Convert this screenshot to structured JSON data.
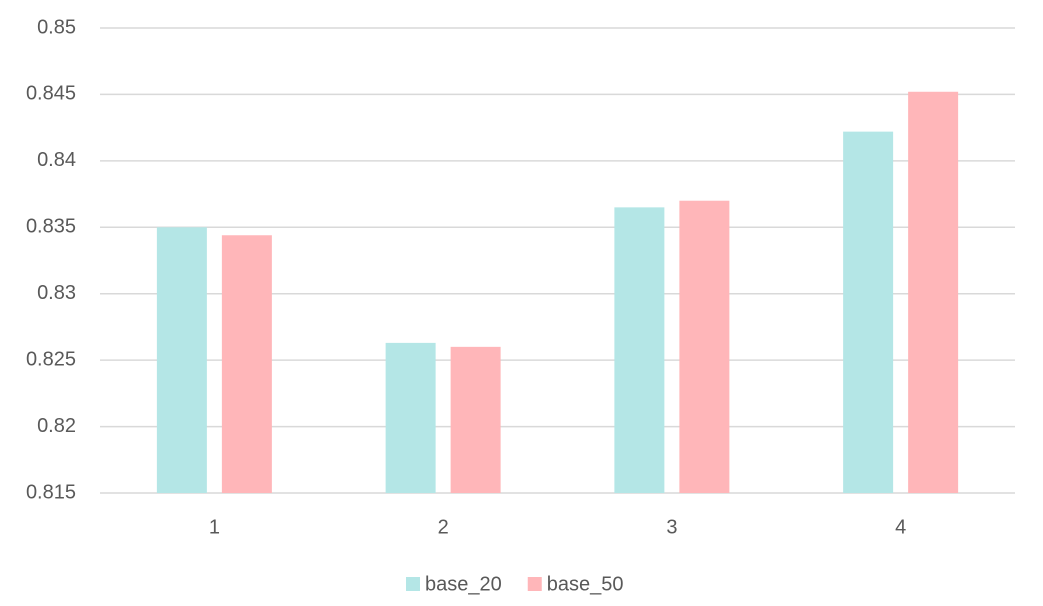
{
  "chart_data": {
    "type": "bar",
    "categories": [
      "1",
      "2",
      "3",
      "4"
    ],
    "series": [
      {
        "name": "base_20",
        "color": "#b4e6e6",
        "values": [
          0.835,
          0.8263,
          0.8365,
          0.8422
        ]
      },
      {
        "name": "base_50",
        "color": "#ffb6b9",
        "values": [
          0.8344,
          0.826,
          0.837,
          0.8452
        ]
      }
    ],
    "ylim": [
      0.815,
      0.85
    ],
    "yticks": [
      0.815,
      0.82,
      0.825,
      0.83,
      0.835,
      0.84,
      0.845,
      0.85
    ],
    "grid": true,
    "legend": "bottom"
  }
}
